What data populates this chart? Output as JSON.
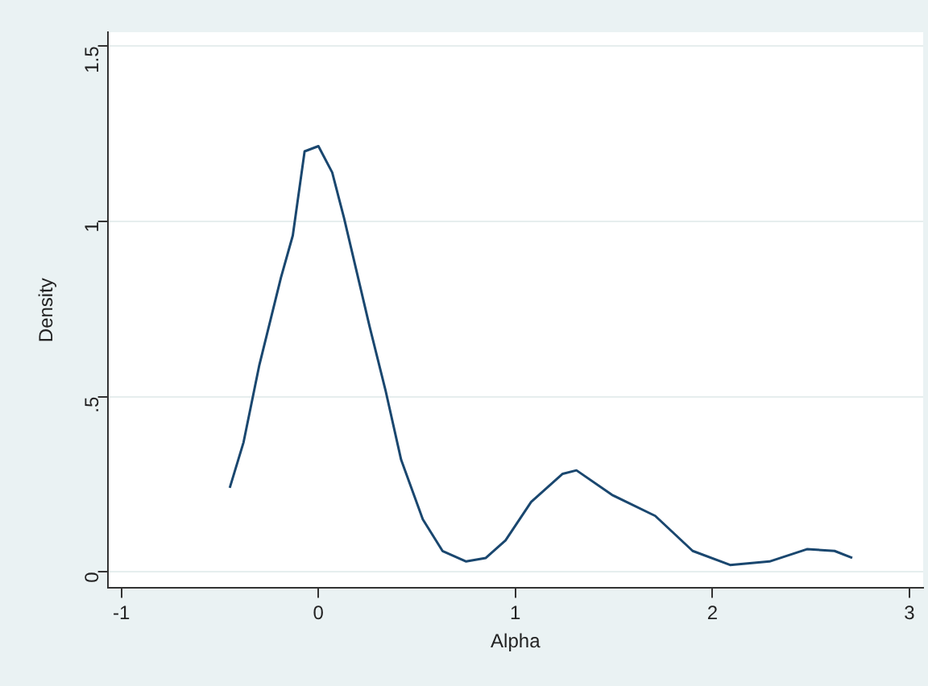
{
  "chart_data": {
    "type": "line",
    "xlabel": "Alpha",
    "ylabel": "Density",
    "x": [
      -0.45,
      -0.38,
      -0.3,
      -0.19,
      -0.13,
      -0.07,
      0,
      0.07,
      0.13,
      0.26,
      0.34,
      0.42,
      0.53,
      0.63,
      0.75,
      0.85,
      0.95,
      1.08,
      1.24,
      1.31,
      1.49,
      1.71,
      1.9,
      2.09,
      2.29,
      2.48,
      2.62,
      2.71
    ],
    "series": [
      {
        "color": "#1a476f",
        "values": [
          0.24,
          0.37,
          0.59,
          0.84,
          0.96,
          1.2,
          1.215,
          1.14,
          1.01,
          0.7,
          0.52,
          0.32,
          0.15,
          0.06,
          0.03,
          0.04,
          0.09,
          0.2,
          0.28,
          0.29,
          0.22,
          0.16,
          0.06,
          0.02,
          0.03,
          0.065,
          0.06,
          0.04
        ]
      }
    ],
    "xlim": [
      -1.07,
      3.07
    ],
    "ylim": [
      -0.046,
      1.54
    ],
    "xticks": [
      -1,
      0,
      1,
      2,
      3
    ],
    "yticks": [
      0,
      {
        "value": 0.5,
        "label": ".5"
      },
      1,
      1.5
    ],
    "grid": "y",
    "legend": false,
    "marker": "none",
    "line_style": "solid"
  }
}
